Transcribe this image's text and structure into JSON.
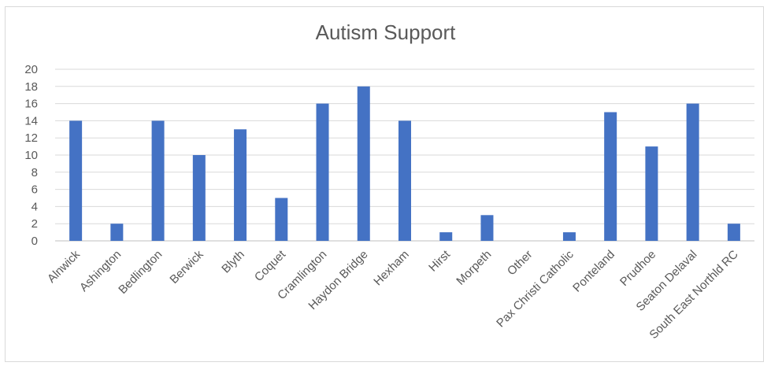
{
  "chart_data": {
    "type": "bar",
    "title": "Autism Support",
    "xlabel": "",
    "ylabel": "",
    "ylim": [
      0,
      20
    ],
    "yticks": [
      0,
      2,
      4,
      6,
      8,
      10,
      12,
      14,
      16,
      18,
      20
    ],
    "grid": true,
    "legend": "none",
    "bar_color": "#4472c4",
    "categories": [
      "Alnwick",
      "Ashington",
      "Bedlington",
      "Berwick",
      "Blyth",
      "Coquet",
      "Cramlington",
      "Haydon Bridge",
      "Hexham",
      "Hirst",
      "Morpeth",
      "Other",
      "Pax Christi Catholic",
      "Ponteland",
      "Prudhoe",
      "Seaton Delaval",
      "South East Northld RC"
    ],
    "values": [
      14,
      2,
      14,
      10,
      13,
      5,
      16,
      18,
      14,
      1,
      3,
      0,
      1,
      15,
      11,
      16,
      2
    ]
  }
}
